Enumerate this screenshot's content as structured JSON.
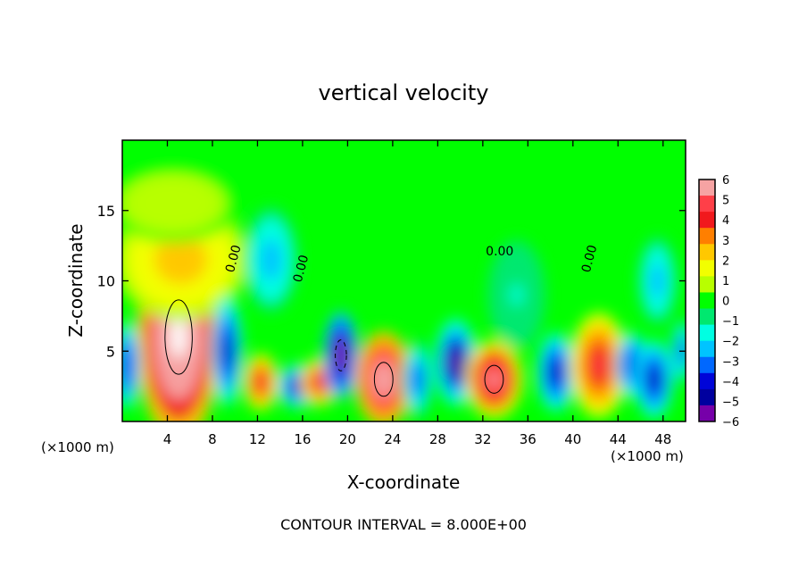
{
  "chart_data": {
    "type": "heatmap",
    "title": "vertical velocity",
    "xlabel": "X-coordinate",
    "ylabel": "Z-coordinate",
    "x_unit_left": "(×1000 m)",
    "x_unit_right": "(×1000 m)",
    "footer": "CONTOUR INTERVAL = 8.000E+00",
    "xlim": [
      0,
      50
    ],
    "ylim": [
      0,
      20
    ],
    "x_ticks": [
      4,
      8,
      12,
      16,
      20,
      24,
      28,
      32,
      36,
      40,
      44,
      48
    ],
    "y_ticks": [
      5,
      10,
      15
    ],
    "colorbar": {
      "min": -6,
      "max": 6,
      "ticks": [
        6,
        5,
        4,
        3,
        2,
        1,
        0,
        -1,
        -2,
        -3,
        -4,
        -5,
        -6
      ],
      "tick_labels": [
        "6",
        "5",
        "4",
        "3",
        "2",
        "1",
        "0",
        "−1",
        "−2",
        "−3",
        "−4",
        "−5",
        "−6"
      ],
      "colors": [
        "#f6a3a3",
        "#ff3f48",
        "#f1191d",
        "#ff7f00",
        "#ffc800",
        "#f2ff00",
        "#b8ff00",
        "#00ff00",
        "#00e86f",
        "#00ffe2",
        "#00c4ff",
        "#0068ff",
        "#0005d8",
        "#00009f",
        "#7600a9"
      ]
    },
    "contour_labels": [
      "0.00",
      "0.00",
      "0.00",
      "0.00"
    ],
    "cells": [
      {
        "x": 5,
        "z": 6,
        "sx": 2.2,
        "sz": 4.8,
        "v": 9.5
      },
      {
        "x": 5.2,
        "z": 11.5,
        "sx": 3.5,
        "sz": 2.8,
        "v": 3.2
      },
      {
        "x": 4.5,
        "z": 15.5,
        "sx": 3.5,
        "sz": 1.8,
        "v": 1.2
      },
      {
        "x": 9.3,
        "z": 5,
        "sx": 0.8,
        "sz": 2.5,
        "v": -6
      },
      {
        "x": 13.2,
        "z": 11.5,
        "sx": 1.4,
        "sz": 2.4,
        "v": -3
      },
      {
        "x": 12.3,
        "z": 2.8,
        "sx": 0.9,
        "sz": 1.3,
        "v": 6
      },
      {
        "x": 15.5,
        "z": 2.5,
        "sx": 1,
        "sz": 1,
        "v": -6
      },
      {
        "x": 17.5,
        "z": 2.8,
        "sx": 1,
        "sz": 1.1,
        "v": 5.5
      },
      {
        "x": 19.4,
        "z": 4.7,
        "sx": 0.9,
        "sz": 2,
        "v": -7.5
      },
      {
        "x": 23.2,
        "z": 3,
        "sx": 1.5,
        "sz": 2.2,
        "v": 8
      },
      {
        "x": 26.2,
        "z": 3,
        "sx": 0.8,
        "sz": 1.8,
        "v": -4
      },
      {
        "x": 29.6,
        "z": 4.2,
        "sx": 1.1,
        "sz": 2,
        "v": -6.5
      },
      {
        "x": 33,
        "z": 3,
        "sx": 1.5,
        "sz": 1.8,
        "v": 7
      },
      {
        "x": 35,
        "z": 9,
        "sx": 1.5,
        "sz": 2.5,
        "v": -1.5
      },
      {
        "x": 38.5,
        "z": 3.5,
        "sx": 1,
        "sz": 1.8,
        "v": -6
      },
      {
        "x": 42.3,
        "z": 4,
        "sx": 1.5,
        "sz": 2.4,
        "v": 6
      },
      {
        "x": 45.2,
        "z": 4,
        "sx": 0.8,
        "sz": 1.5,
        "v": -5
      },
      {
        "x": 47.2,
        "z": 3,
        "sx": 1,
        "sz": 1.8,
        "v": -6
      },
      {
        "x": 47.5,
        "z": 10,
        "sx": 1,
        "sz": 2,
        "v": -3
      },
      {
        "x": 0.4,
        "z": 4,
        "sx": 0.7,
        "sz": 2,
        "v": -5
      },
      {
        "x": 49.7,
        "z": 5,
        "sx": 0.6,
        "sz": 1.5,
        "v": -4
      }
    ]
  }
}
